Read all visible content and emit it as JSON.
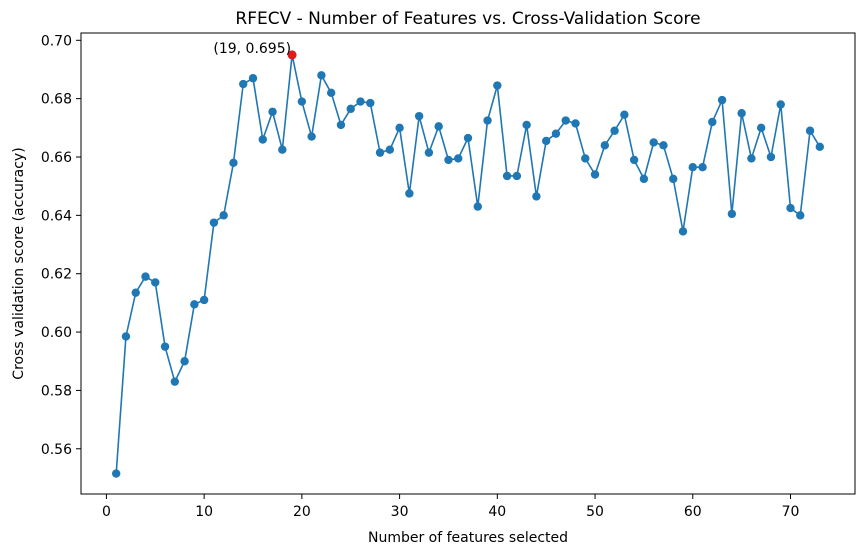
{
  "chart_data": {
    "type": "line",
    "title": "RFECV - Number of Features vs. Cross-Validation Score",
    "xlabel": "Number of features selected",
    "ylabel": "Cross validation score (accuracy)",
    "xlim": [
      -2.6,
      76.6
    ],
    "ylim": [
      0.5445,
      0.7025
    ],
    "xticks": [
      0,
      10,
      20,
      30,
      40,
      50,
      60,
      70
    ],
    "yticks": [
      0.56,
      0.58,
      0.6,
      0.62,
      0.64,
      0.66,
      0.68,
      0.7
    ],
    "ytick_labels": [
      "0.56",
      "0.58",
      "0.60",
      "0.62",
      "0.64",
      "0.66",
      "0.68",
      "0.70"
    ],
    "grid": false,
    "line_color": "#1f77b4",
    "highlight_color": "#e31a1c",
    "x": [
      1,
      2,
      3,
      4,
      5,
      6,
      7,
      8,
      9,
      10,
      11,
      12,
      13,
      14,
      15,
      16,
      17,
      18,
      19,
      20,
      21,
      22,
      23,
      24,
      25,
      26,
      27,
      28,
      29,
      30,
      31,
      32,
      33,
      34,
      35,
      36,
      37,
      38,
      39,
      40,
      41,
      42,
      43,
      44,
      45,
      46,
      47,
      48,
      49,
      50,
      51,
      52,
      53,
      54,
      55,
      56,
      57,
      58,
      59,
      60,
      61,
      62,
      63,
      64,
      65,
      66,
      67,
      68,
      69,
      70,
      71,
      72,
      73
    ],
    "y": [
      0.5515,
      0.5985,
      0.6135,
      0.619,
      0.617,
      0.595,
      0.583,
      0.59,
      0.6095,
      0.611,
      0.6375,
      0.64,
      0.658,
      0.685,
      0.687,
      0.666,
      0.6755,
      0.6625,
      0.695,
      0.679,
      0.667,
      0.688,
      0.682,
      0.671,
      0.6765,
      0.679,
      0.6785,
      0.6615,
      0.6625,
      0.67,
      0.6475,
      0.674,
      0.6615,
      0.6705,
      0.659,
      0.6595,
      0.6665,
      0.643,
      0.6725,
      0.6845,
      0.6535,
      0.6535,
      0.671,
      0.6465,
      0.6655,
      0.668,
      0.6725,
      0.6715,
      0.6595,
      0.654,
      0.664,
      0.669,
      0.6745,
      0.659,
      0.6525,
      0.665,
      0.664,
      0.6525,
      0.6345,
      0.6565,
      0.6565,
      0.672,
      0.6795,
      0.6405,
      0.675,
      0.6595,
      0.67,
      0.66,
      0.678,
      0.6425,
      0.64,
      0.669,
      0.6635
    ],
    "highlight": {
      "x": 19,
      "y": 0.695,
      "label": "(19, 0.695)"
    }
  }
}
